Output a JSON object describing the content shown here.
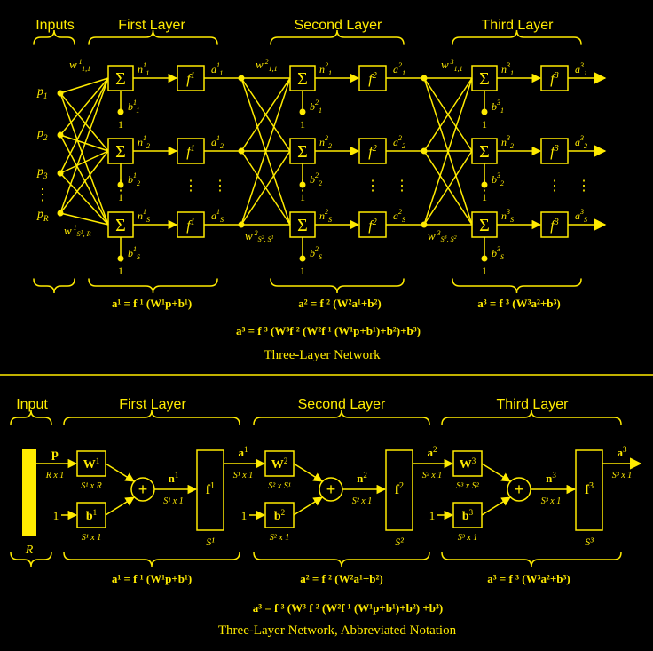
{
  "colors": {
    "fg": "#ffeb00",
    "bg": "#000000"
  },
  "top": {
    "headers": {
      "inputs": "Inputs",
      "first": "First Layer",
      "second": "Second Layer",
      "third": "Third Layer"
    },
    "inputs": {
      "p1": "p",
      "p1_sub": "1",
      "p2": "p",
      "p2_sub": "2",
      "p3": "p",
      "p3_sub": "3",
      "pR": "p",
      "pR_sub": "R"
    },
    "sum_symbol": "Σ",
    "bias_one": "1",
    "dots": "⋮",
    "weights": {
      "w1_top": "w",
      "w1_top_sup": "1",
      "w1_top_sub": "1,1",
      "w1_bot": "w",
      "w1_bot_sup": "1",
      "w1_bot_sub": "S",
      "w1_bot_sub_sup": "1",
      "w1_bot_tail": ", R",
      "w2_top": "w",
      "w2_top_sup": "2",
      "w2_top_sub": "1,1",
      "w2_bot": "w",
      "w2_bot_sup": "2",
      "w2_bot_sub": "S",
      "w2_bot_sub_sup": "2",
      "w2_bot_tail": ", S",
      "w2_bot_tail_sup": "1",
      "w3_top": "w",
      "w3_top_sup": "3",
      "w3_top_sub": "1,1",
      "w3_bot": "w",
      "w3_bot_sup": "3",
      "w3_bot_sub": "S",
      "w3_bot_sub_sup": "3",
      "w3_bot_tail": ", S",
      "w3_bot_tail_sup": "2"
    },
    "functions": {
      "f": "f",
      "l1": "1",
      "l2": "2",
      "l3": "3"
    },
    "equations": {
      "eq1": "a¹ = f ¹ (W¹p+b¹)",
      "eq2": "a² = f ² (W²a¹+b²)",
      "eq3": "a³ = f ³ (W³a²+b³)",
      "eq_full": "a³ = f ³ (W³f ² (W²f ¹ (W¹p+b¹)+b²)+b³)"
    },
    "caption": "Three-Layer Network"
  },
  "bottom": {
    "headers": {
      "input": "Input",
      "first": "First Layer",
      "second": "Second Layer",
      "third": "Third Layer"
    },
    "input_label": "R",
    "p_label": "p",
    "p_dim": "R x 1",
    "one": "1",
    "plus": "+",
    "layers": [
      {
        "W": "W",
        "Wsup": "1",
        "W_dim": "S¹ x R",
        "b": "b",
        "bsup": "1",
        "b_dim": "S¹ x 1",
        "n": "n",
        "nsup": "1",
        "n_dim": "S¹ x 1",
        "f": "f",
        "fsup": "1",
        "S": "S¹",
        "a": "a",
        "asup": "1",
        "a_dim": "S¹ x 1"
      },
      {
        "W": "W",
        "Wsup": "2",
        "W_dim": "S² x S¹",
        "b": "b",
        "bsup": "2",
        "b_dim": "S² x 1",
        "n": "n",
        "nsup": "2",
        "n_dim": "S² x 1",
        "f": "f",
        "fsup": "2",
        "S": "S²",
        "a": "a",
        "asup": "2",
        "a_dim": "S² x 1"
      },
      {
        "W": "W",
        "Wsup": "3",
        "W_dim": "S³ x S²",
        "b": "b",
        "bsup": "3",
        "b_dim": "S³ x 1",
        "n": "n",
        "nsup": "3",
        "n_dim": "S³ x 1",
        "f": "f",
        "fsup": "3",
        "S": "S³",
        "a": "a",
        "asup": "3",
        "a_dim": "S³ x 1"
      }
    ],
    "equations": {
      "eq1": "a¹ = f ¹ (W¹p+b¹)",
      "eq2": "a² = f ² (W²a¹+b²)",
      "eq3": "a³ = f ³ (W³a²+b³)",
      "eq_full": "a³ = f ³ (W³ f ² (W²f ¹ (W¹p+b¹)+b²) +b³)"
    },
    "caption": "Three-Layer Network, Abbreviated Notation"
  }
}
